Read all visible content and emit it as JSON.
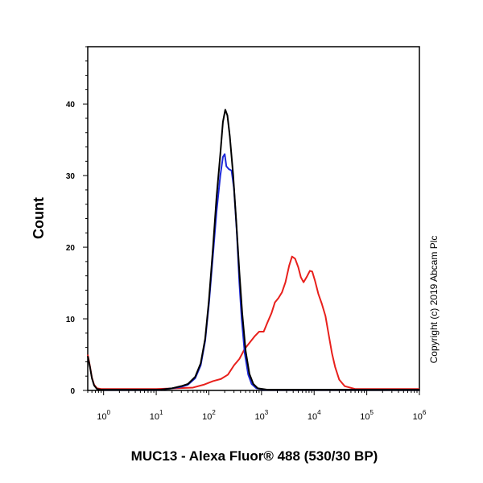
{
  "chart_data": {
    "type": "line",
    "title": "",
    "xlabel": "MUC13 - Alexa Fluor® 488 (530/30 BP)",
    "ylabel": "Count",
    "x_scale": "log",
    "xlim": [
      0.5,
      1000000
    ],
    "ylim": [
      0,
      48
    ],
    "x_ticks": [
      {
        "value": 1,
        "base": "10",
        "exp": "0"
      },
      {
        "value": 10,
        "base": "10",
        "exp": "1"
      },
      {
        "value": 100,
        "base": "10",
        "exp": "2"
      },
      {
        "value": 1000,
        "base": "10",
        "exp": "3"
      },
      {
        "value": 10000,
        "base": "10",
        "exp": "4"
      },
      {
        "value": 100000,
        "base": "10",
        "exp": "5"
      },
      {
        "value": 1000000,
        "base": "10",
        "exp": "6"
      }
    ],
    "y_ticks": [
      0,
      10,
      20,
      30,
      40
    ],
    "grid": false,
    "legend": "none",
    "series": [
      {
        "color": "#e8201c",
        "points": [
          [
            0.5,
            5
          ],
          [
            0.55,
            3.4
          ],
          [
            0.6,
            1.8
          ],
          [
            0.66,
            0.8
          ],
          [
            0.75,
            0.3
          ],
          [
            0.9,
            0.2
          ],
          [
            2,
            0.2
          ],
          [
            10,
            0.2
          ],
          [
            50,
            0.4
          ],
          [
            80,
            0.8
          ],
          [
            120,
            1.3
          ],
          [
            170,
            1.6
          ],
          [
            230,
            2.2
          ],
          [
            300,
            3.5
          ],
          [
            380,
            4.4
          ],
          [
            480,
            5.8
          ],
          [
            600,
            6.7
          ],
          [
            750,
            7.6
          ],
          [
            900,
            8.2
          ],
          [
            1100,
            8.2
          ],
          [
            1300,
            9.5
          ],
          [
            1550,
            10.8
          ],
          [
            1800,
            12.3
          ],
          [
            2100,
            12.9
          ],
          [
            2450,
            13.7
          ],
          [
            2850,
            15.1
          ],
          [
            3350,
            17.4
          ],
          [
            3800,
            18.7
          ],
          [
            4350,
            18.4
          ],
          [
            5000,
            17.2
          ],
          [
            5600,
            15.8
          ],
          [
            6300,
            15.1
          ],
          [
            7300,
            15.9
          ],
          [
            8300,
            16.7
          ],
          [
            9200,
            16.6
          ],
          [
            10400,
            15.3
          ],
          [
            12000,
            13.5
          ],
          [
            14000,
            12.1
          ],
          [
            16400,
            10.4
          ],
          [
            19000,
            7.7
          ],
          [
            21800,
            5.2
          ],
          [
            25000,
            3.3
          ],
          [
            30000,
            1.5
          ],
          [
            38000,
            0.6
          ],
          [
            60000,
            0.2
          ],
          [
            150000,
            0.2
          ],
          [
            1000000,
            0.2
          ]
        ]
      },
      {
        "color": "#1c28d8",
        "points": [
          [
            1,
            0.1
          ],
          [
            5,
            0.1
          ],
          [
            12,
            0.1
          ],
          [
            20,
            0.3
          ],
          [
            30,
            0.5
          ],
          [
            40,
            0.8
          ],
          [
            55,
            1.7
          ],
          [
            70,
            3.5
          ],
          [
            85,
            6.9
          ],
          [
            100,
            12
          ],
          [
            120,
            19
          ],
          [
            140,
            25
          ],
          [
            165,
            30
          ],
          [
            185,
            32.6
          ],
          [
            200,
            33
          ],
          [
            215,
            31.3
          ],
          [
            240,
            30.9
          ],
          [
            270,
            30.7
          ],
          [
            300,
            28.2
          ],
          [
            340,
            22
          ],
          [
            380,
            15
          ],
          [
            420,
            10
          ],
          [
            480,
            5.2
          ],
          [
            560,
            2.2
          ],
          [
            650,
            0.9
          ],
          [
            800,
            0.3
          ],
          [
            1200,
            0.1
          ],
          [
            1000000,
            0.1
          ]
        ]
      },
      {
        "color": "#000000",
        "points": [
          [
            0.5,
            4.8
          ],
          [
            0.55,
            3.3
          ],
          [
            0.6,
            1.7
          ],
          [
            0.66,
            0.7
          ],
          [
            0.75,
            0.2
          ],
          [
            0.9,
            0.1
          ],
          [
            5,
            0.1
          ],
          [
            12,
            0.1
          ],
          [
            20,
            0.3
          ],
          [
            30,
            0.6
          ],
          [
            40,
            0.9
          ],
          [
            55,
            1.9
          ],
          [
            70,
            3.8
          ],
          [
            85,
            7.2
          ],
          [
            100,
            12.5
          ],
          [
            120,
            20
          ],
          [
            140,
            27
          ],
          [
            165,
            33
          ],
          [
            185,
            37.5
          ],
          [
            205,
            39.2
          ],
          [
            225,
            38.4
          ],
          [
            250,
            35.5
          ],
          [
            290,
            30
          ],
          [
            330,
            23.8
          ],
          [
            380,
            16.5
          ],
          [
            430,
            10.8
          ],
          [
            500,
            5.5
          ],
          [
            590,
            2.3
          ],
          [
            700,
            0.9
          ],
          [
            850,
            0.3
          ],
          [
            1300,
            0.1
          ],
          [
            1000000,
            0.1
          ]
        ]
      }
    ]
  },
  "copyright": "Copyright (c) 2019 Abcam Plc"
}
